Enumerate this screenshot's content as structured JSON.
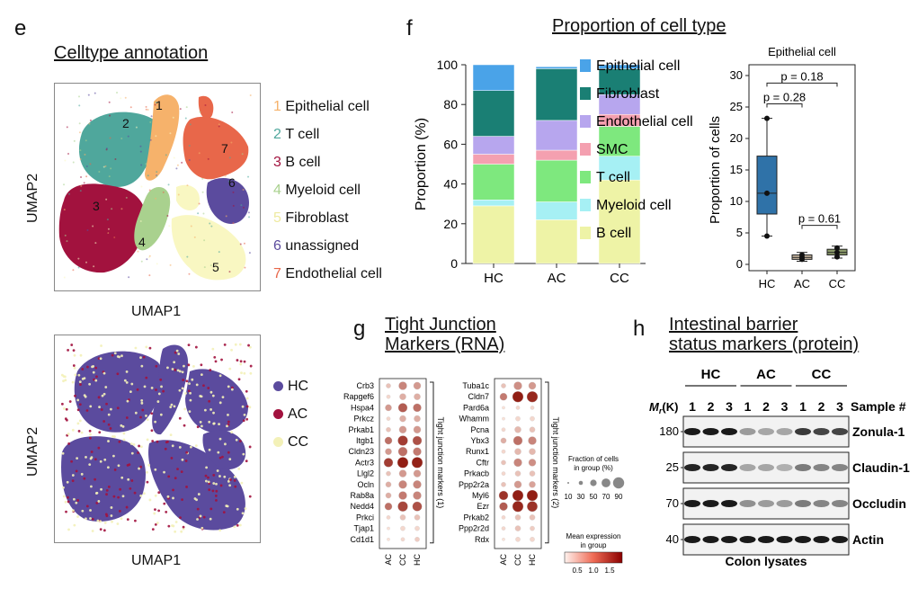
{
  "panel_e": {
    "label": "e",
    "title": "Celltype annotation",
    "umap_top": {
      "xlabel": "UMAP1",
      "ylabel": "UMAP2",
      "cluster_labels": [
        "1",
        "2",
        "3",
        "4",
        "5",
        "6",
        "7"
      ],
      "legend": [
        {
          "num": "1",
          "name": "Epithelial cell",
          "color": "#f6b26b"
        },
        {
          "num": "2",
          "name": "T cell",
          "color": "#4fa79c"
        },
        {
          "num": "3",
          "name": "B cell",
          "color": "#a2123e"
        },
        {
          "num": "4",
          "name": "Myeloid cell",
          "color": "#a9d18e"
        },
        {
          "num": "5",
          "name": "Fibroblast",
          "color": "#f9f7c2"
        },
        {
          "num": "6",
          "name": "unassigned",
          "color": "#5b4b9e"
        },
        {
          "num": "7",
          "name": "Endothelial cell",
          "color": "#e8674a"
        }
      ]
    },
    "umap_bottom": {
      "xlabel": "UMAP1",
      "ylabel": "UMAP2",
      "legend": [
        {
          "name": "HC",
          "color": "#5b4b9e"
        },
        {
          "name": "AC",
          "color": "#a2123e"
        },
        {
          "name": "CC",
          "color": "#f3f1b8"
        }
      ]
    }
  },
  "panel_f": {
    "label": "f",
    "title": "Proportion of cell type",
    "colors": {
      "Epithelial cell": "#4aa3e8",
      "Fibroblast": "#1a7f74",
      "Endothelial cell": "#b7a6ee",
      "SMC": "#f4a0b0",
      "T cell": "#7ee87e",
      "Myeloid cell": "#a6f0f4",
      "B cell": "#eef3a6",
      "box_hc": "#2f72a8",
      "box_ac": "#c7b6a0",
      "box_cc": "#8b9a6a"
    }
  },
  "panel_g": {
    "label": "g",
    "title_line1": "Tight Junction",
    "title_line2": "Markers (RNA)",
    "group_labels": [
      "AC",
      "CC",
      "HC"
    ],
    "bracket_label_1": "Tight junction markers (1)",
    "bracket_label_2": "Tight junction markers (2)",
    "genes_1": [
      "Crb3",
      "Rapgef6",
      "Hspa4",
      "Prkcz",
      "Prkab1",
      "Itgb1",
      "Cldn23",
      "Actr3",
      "Llgl2",
      "Ocln",
      "Rab8a",
      "Nedd4",
      "Prkci",
      "Tjap1",
      "Cd1d1"
    ],
    "genes_2": [
      "Tuba1c",
      "Cldn7",
      "Pard6a",
      "Whamm",
      "Pcna",
      "Ybx3",
      "Runx1",
      "Cftr",
      "Prkacb",
      "Ppp2r2a",
      "Myl6",
      "Ezr",
      "Prkab2",
      "Ppp2r2d",
      "Rdx"
    ],
    "dots_1": [
      [
        [
          0.3,
          0.2
        ],
        [
          0.7,
          0.5
        ],
        [
          0.6,
          0.4
        ]
      ],
      [
        [
          0.2,
          0.1
        ],
        [
          0.5,
          0.3
        ],
        [
          0.5,
          0.3
        ]
      ],
      [
        [
          0.5,
          0.4
        ],
        [
          0.8,
          0.7
        ],
        [
          0.7,
          0.6
        ]
      ],
      [
        [
          0.2,
          0.1
        ],
        [
          0.5,
          0.3
        ],
        [
          0.5,
          0.3
        ]
      ],
      [
        [
          0.3,
          0.2
        ],
        [
          0.6,
          0.4
        ],
        [
          0.6,
          0.4
        ]
      ],
      [
        [
          0.6,
          0.6
        ],
        [
          0.9,
          0.85
        ],
        [
          0.8,
          0.75
        ]
      ],
      [
        [
          0.5,
          0.4
        ],
        [
          0.8,
          0.6
        ],
        [
          0.7,
          0.55
        ]
      ],
      [
        [
          0.8,
          0.85
        ],
        [
          1.0,
          1.0
        ],
        [
          1.0,
          0.98
        ]
      ],
      [
        [
          0.3,
          0.2
        ],
        [
          0.6,
          0.4
        ],
        [
          0.6,
          0.4
        ]
      ],
      [
        [
          0.4,
          0.3
        ],
        [
          0.7,
          0.5
        ],
        [
          0.7,
          0.5
        ]
      ],
      [
        [
          0.4,
          0.3
        ],
        [
          0.7,
          0.55
        ],
        [
          0.7,
          0.5
        ]
      ],
      [
        [
          0.6,
          0.6
        ],
        [
          0.9,
          0.8
        ],
        [
          0.85,
          0.75
        ]
      ],
      [
        [
          0.2,
          0.1
        ],
        [
          0.4,
          0.2
        ],
        [
          0.4,
          0.2
        ]
      ],
      [
        [
          0.1,
          0.05
        ],
        [
          0.3,
          0.1
        ],
        [
          0.3,
          0.1
        ]
      ],
      [
        [
          0.1,
          0.05
        ],
        [
          0.2,
          0.1
        ],
        [
          0.3,
          0.15
        ]
      ]
    ],
    "dots_2": [
      [
        [
          0.3,
          0.2
        ],
        [
          0.7,
          0.45
        ],
        [
          0.6,
          0.4
        ]
      ],
      [
        [
          0.6,
          0.55
        ],
        [
          1.0,
          1.0
        ],
        [
          1.0,
          0.95
        ]
      ],
      [
        [
          0.1,
          0.05
        ],
        [
          0.2,
          0.1
        ],
        [
          0.2,
          0.1
        ]
      ],
      [
        [
          0.1,
          0.05
        ],
        [
          0.3,
          0.1
        ],
        [
          0.3,
          0.1
        ]
      ],
      [
        [
          0.2,
          0.1
        ],
        [
          0.5,
          0.25
        ],
        [
          0.4,
          0.2
        ]
      ],
      [
        [
          0.4,
          0.3
        ],
        [
          0.8,
          0.6
        ],
        [
          0.7,
          0.5
        ]
      ],
      [
        [
          0.2,
          0.1
        ],
        [
          0.5,
          0.25
        ],
        [
          0.5,
          0.25
        ]
      ],
      [
        [
          0.3,
          0.2
        ],
        [
          0.7,
          0.5
        ],
        [
          0.6,
          0.45
        ]
      ],
      [
        [
          0.2,
          0.1
        ],
        [
          0.4,
          0.2
        ],
        [
          0.4,
          0.2
        ]
      ],
      [
        [
          0.3,
          0.2
        ],
        [
          0.6,
          0.4
        ],
        [
          0.5,
          0.35
        ]
      ],
      [
        [
          0.8,
          0.9
        ],
        [
          1.0,
          1.0
        ],
        [
          1.0,
          1.0
        ]
      ],
      [
        [
          0.7,
          0.7
        ],
        [
          1.0,
          0.95
        ],
        [
          0.95,
          0.9
        ]
      ],
      [
        [
          0.2,
          0.1
        ],
        [
          0.4,
          0.2
        ],
        [
          0.4,
          0.2
        ]
      ],
      [
        [
          0.2,
          0.1
        ],
        [
          0.4,
          0.2
        ],
        [
          0.3,
          0.15
        ]
      ],
      [
        [
          0.1,
          0.05
        ],
        [
          0.3,
          0.1
        ],
        [
          0.3,
          0.1
        ]
      ]
    ],
    "size_legend": {
      "title_line1": "Fraction of cells",
      "title_line2": "in group (%)",
      "ticks": [
        "10",
        "30",
        "50",
        "70",
        "90"
      ]
    },
    "color_legend": {
      "title_line1": "Mean expression",
      "title_line2": "in group",
      "ticks": [
        "0.5",
        "1.0",
        "1.5"
      ]
    }
  },
  "panel_h": {
    "label": "h",
    "title_line1": "Intestinal barrier",
    "title_line2": "status markers (protein)",
    "groups": [
      "HC",
      "AC",
      "CC"
    ],
    "sample_numbers": [
      "1",
      "2",
      "3",
      "1",
      "2",
      "3",
      "1",
      "2",
      "3"
    ],
    "sample_header": "Sample #",
    "mr_label": "M",
    "mr_sub": "r",
    "mr_unit": "(K)",
    "blots": [
      {
        "mw": "180",
        "name": "Zonula-1",
        "intensity": [
          0.95,
          0.95,
          0.95,
          0.35,
          0.3,
          0.3,
          0.8,
          0.75,
          0.75
        ]
      },
      {
        "mw": "25",
        "name": "Claudin-1",
        "intensity": [
          0.9,
          0.9,
          0.9,
          0.3,
          0.3,
          0.25,
          0.5,
          0.45,
          0.45
        ]
      },
      {
        "mw": "70",
        "name": "Occludin",
        "intensity": [
          0.95,
          0.95,
          0.95,
          0.4,
          0.35,
          0.35,
          0.5,
          0.45,
          0.45
        ]
      },
      {
        "mw": "40",
        "name": "Actin",
        "intensity": [
          0.95,
          0.95,
          0.95,
          0.95,
          0.95,
          0.95,
          0.95,
          0.95,
          0.95
        ]
      }
    ],
    "footer": "Colon lysates"
  },
  "chart_data": [
    {
      "type": "bar",
      "stacked": true,
      "ylabel": "Proportion (%)",
      "ylim": [
        0,
        100
      ],
      "yticks": [
        "0",
        "20",
        "40",
        "60",
        "80",
        "100"
      ],
      "categories": [
        "HC",
        "AC",
        "CC"
      ],
      "series": [
        {
          "name": "B cell",
          "values": [
            29,
            22,
            42
          ]
        },
        {
          "name": "Myeloid cell",
          "values": [
            3,
            9,
            12
          ]
        },
        {
          "name": "T cell",
          "values": [
            18,
            21,
            15
          ]
        },
        {
          "name": "SMC",
          "values": [
            5,
            5,
            6
          ]
        },
        {
          "name": "Endothelial cell",
          "values": [
            9,
            15,
            10
          ]
        },
        {
          "name": "Fibroblast",
          "values": [
            23,
            26,
            13
          ]
        },
        {
          "name": "Epithelial cell",
          "values": [
            13,
            1,
            2
          ]
        }
      ],
      "legend_order": [
        "Epithelial cell",
        "Fibroblast",
        "Endothelial cell",
        "SMC",
        "T cell",
        "Myeloid cell",
        "B cell"
      ],
      "legend_position": "right"
    },
    {
      "type": "box",
      "title": "Epithelial cell",
      "ylabel": "Proportion of cells",
      "ylim": [
        0,
        30
      ],
      "yticks": [
        "0",
        "5",
        "10",
        "15",
        "20",
        "25",
        "30"
      ],
      "categories": [
        "HC",
        "AC",
        "CC"
      ],
      "boxes": [
        {
          "name": "HC",
          "min": 4.5,
          "q1": 8,
          "median": 11.3,
          "q3": 17.2,
          "max": 23.2,
          "points": [
            23.2,
            11.3,
            4.5
          ]
        },
        {
          "name": "AC",
          "min": 0.5,
          "q1": 0.8,
          "median": 1.1,
          "q3": 1.5,
          "max": 1.9,
          "points": [
            1.5,
            1.1,
            0.8
          ]
        },
        {
          "name": "CC",
          "min": 1.0,
          "q1": 1.5,
          "median": 1.9,
          "q3": 2.4,
          "max": 2.9,
          "points": [
            2.6,
            1.9,
            1.2
          ]
        }
      ],
      "comparisons": [
        {
          "label": "p = 0.28",
          "from": "HC",
          "to": "AC",
          "y": 25.5
        },
        {
          "label": "p = 0.18",
          "from": "HC",
          "to": "CC",
          "y": 28.8
        },
        {
          "label": "p = 0.61",
          "from": "AC",
          "to": "CC",
          "y": 6.2
        }
      ]
    }
  ]
}
